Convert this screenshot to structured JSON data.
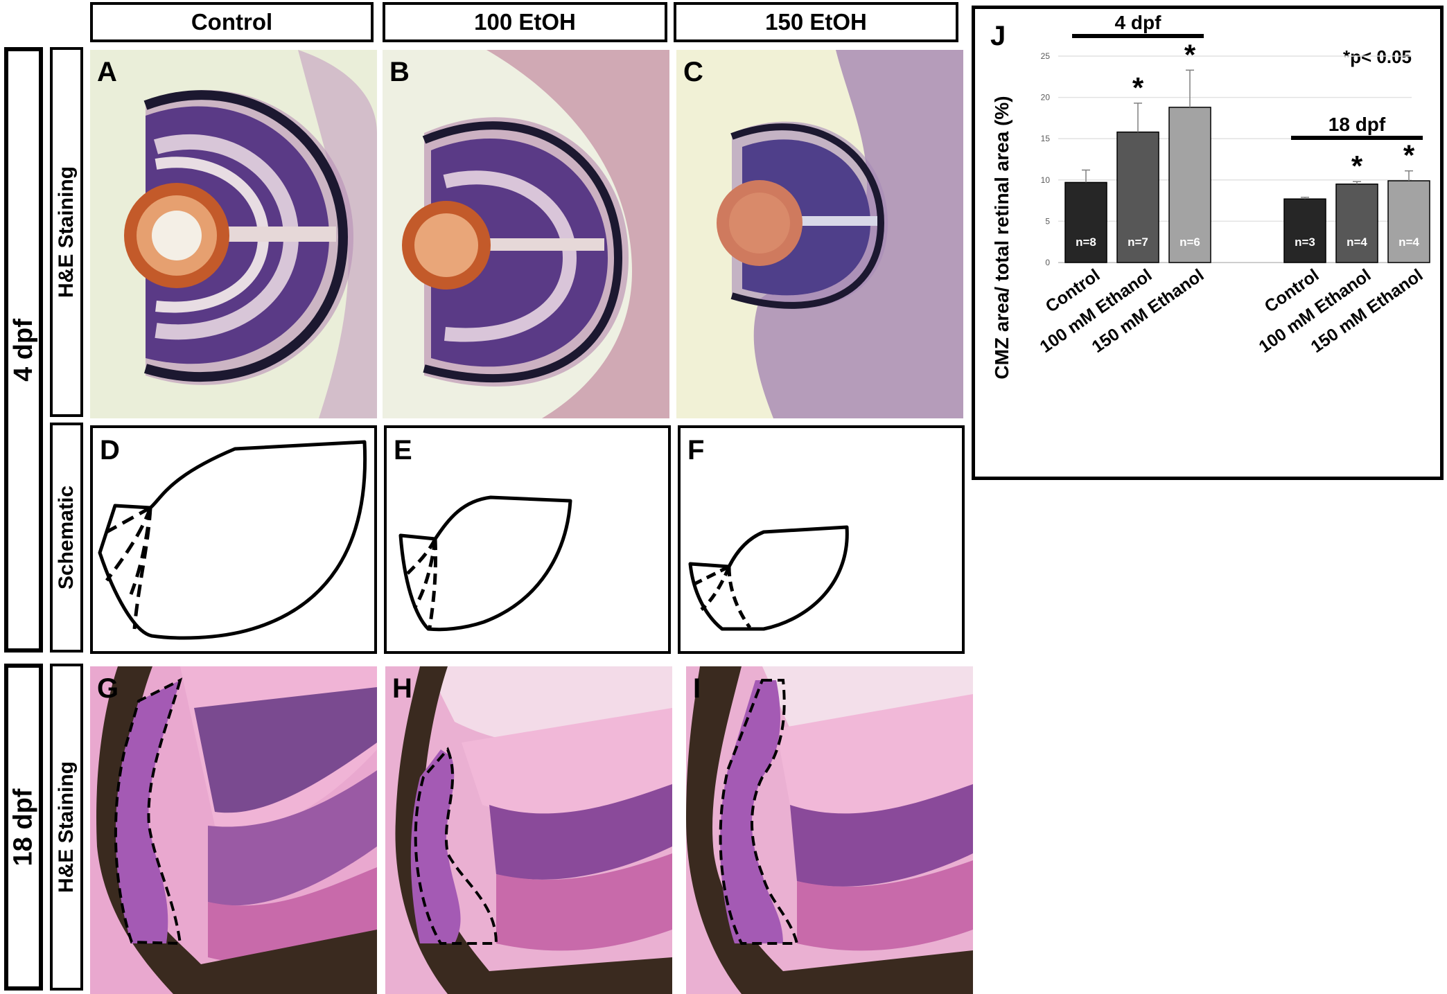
{
  "columns": [
    "Control",
    "100 EtOH",
    "150 EtOH"
  ],
  "rows": {
    "stage_4dpf": "4 dpf",
    "stage_18dpf": "18 dpf",
    "he_staining": "H&E Staining",
    "schematic": "Schematic"
  },
  "panel_letters": [
    "A",
    "B",
    "C",
    "D",
    "E",
    "F",
    "G",
    "H",
    "I",
    "J"
  ],
  "colors": {
    "control_bar": "#262626",
    "ethanol100_bar": "#575757",
    "ethanol150_bar": "#a3a3a3",
    "he_purple": "#5a3a86",
    "he_pink": "#d47bb0"
  },
  "chart_data": {
    "type": "bar",
    "panel_letter": "J",
    "ylabel": "CMZ area/ total retinal area (%)",
    "ylim": [
      0,
      25
    ],
    "yticks": [
      "0",
      "5",
      "10",
      "15",
      "20",
      "25"
    ],
    "significance_note": "*p< 0.05",
    "groups": [
      {
        "name": "4 dpf",
        "categories": [
          "Control",
          "100 mM Ethanol",
          "150  mM Ethanol"
        ],
        "values": [
          9.7,
          15.8,
          18.8
        ],
        "errors": [
          1.5,
          3.5,
          4.5
        ],
        "n_labels": [
          "n=8",
          "n=7",
          "n=6"
        ],
        "significant": [
          false,
          true,
          true
        ]
      },
      {
        "name": "18 dpf",
        "categories": [
          "Control",
          "100 mM Ethanol",
          "150  mM Ethanol"
        ],
        "values": [
          7.7,
          9.5,
          9.9
        ],
        "errors": [
          0.2,
          0.3,
          1.2
        ],
        "n_labels": [
          "n=3",
          "n=4",
          "n=4"
        ],
        "significant": [
          false,
          true,
          true
        ]
      }
    ],
    "star": "*"
  }
}
